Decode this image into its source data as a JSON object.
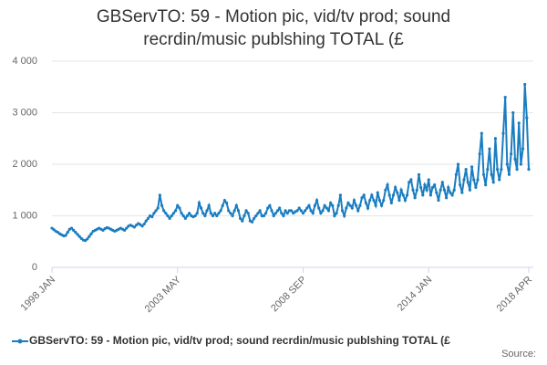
{
  "chart_data": {
    "type": "line",
    "title": "GBServTO: 59 - Motion pic, vid/tv prod; sound recrdin/music publshing TOTAL (£",
    "source": "Source:",
    "categories": [
      "1998 JAN",
      null,
      null,
      null,
      null,
      null,
      null,
      null,
      null,
      null,
      null,
      null,
      null,
      null,
      null,
      null,
      null,
      null,
      null,
      null,
      null,
      null,
      null,
      null,
      null,
      null,
      null,
      null,
      null,
      null,
      null,
      null,
      null,
      null,
      null,
      null,
      null,
      null,
      null,
      null,
      null,
      null,
      null,
      null,
      null,
      null,
      null,
      null,
      null,
      null,
      null,
      null,
      null,
      null,
      null,
      null,
      null,
      null,
      null,
      null,
      null,
      null,
      null,
      null,
      "2003 MAY",
      null,
      null,
      null,
      null,
      null,
      null,
      null,
      null,
      null,
      null,
      null,
      null,
      null,
      null,
      null,
      null,
      null,
      null,
      null,
      null,
      null,
      null,
      null,
      null,
      null,
      null,
      null,
      null,
      null,
      null,
      null,
      null,
      null,
      null,
      null,
      null,
      null,
      null,
      null,
      null,
      null,
      null,
      null,
      null,
      null,
      null,
      null,
      null,
      null,
      null,
      null,
      null,
      null,
      null,
      null,
      null,
      null,
      null,
      null,
      null,
      null,
      null,
      null,
      "2008 SEP",
      null,
      null,
      null,
      null,
      null,
      null,
      null,
      null,
      null,
      null,
      null,
      null,
      null,
      null,
      null,
      null,
      null,
      null,
      null,
      null,
      null,
      null,
      null,
      null,
      null,
      null,
      null,
      null,
      null,
      null,
      null,
      null,
      null,
      null,
      null,
      null,
      null,
      null,
      null,
      null,
      null,
      null,
      null,
      null,
      null,
      null,
      null,
      null,
      null,
      null,
      null,
      null,
      null,
      null,
      null,
      null,
      null,
      null,
      null,
      null,
      null,
      null,
      null,
      "2014 JAN",
      null,
      null,
      null,
      null,
      null,
      null,
      null,
      null,
      null,
      null,
      null,
      null,
      null,
      null,
      null,
      null,
      null,
      null,
      null,
      null,
      null,
      null,
      null,
      null,
      null,
      null,
      null,
      null,
      null,
      null,
      null,
      null,
      null,
      null,
      null,
      null,
      null,
      null,
      null,
      null,
      null,
      null,
      null,
      null,
      null,
      null,
      null,
      null,
      null,
      null,
      "2018 APR"
    ],
    "series": [
      {
        "name": "GBServTO: 59 - Motion pic, vid/tv prod; sound recrdin/music publshing TOTAL (£",
        "color": "#1a7dc0",
        "values": [
          760,
          730,
          700,
          680,
          650,
          630,
          610,
          620,
          680,
          740,
          760,
          720,
          680,
          640,
          600,
          560,
          530,
          520,
          550,
          600,
          650,
          700,
          720,
          740,
          760,
          740,
          720,
          750,
          770,
          760,
          740,
          720,
          700,
          720,
          740,
          760,
          740,
          720,
          760,
          800,
          820,
          800,
          780,
          820,
          850,
          830,
          800,
          840,
          900,
          950,
          1000,
          980,
          1050,
          1100,
          1150,
          1400,
          1200,
          1100,
          1050,
          1000,
          950,
          1000,
          1050,
          1100,
          1200,
          1150,
          1050,
          1000,
          950,
          1000,
          1050,
          1000,
          980,
          1000,
          1050,
          1250,
          1150,
          1050,
          1000,
          1100,
          1200,
          1050,
          1000,
          1050,
          1000,
          1050,
          1100,
          1200,
          1300,
          1250,
          1100,
          1050,
          1000,
          1100,
          1200,
          1100,
          950,
          900,
          1000,
          1100,
          1050,
          900,
          880,
          950,
          1000,
          1050,
          1100,
          1000,
          1000,
          1050,
          1150,
          1200,
          1100,
          1000,
          1050,
          1100,
          1150,
          1050,
          1000,
          1100,
          1050,
          1100,
          1100,
          1050,
          1080,
          1100,
          1150,
          1100,
          1050,
          1100,
          1150,
          1200,
          1100,
          1050,
          1200,
          1300,
          1150,
          1050,
          1100,
          1200,
          1150,
          1100,
          1250,
          1200,
          1000,
          1050,
          1200,
          1400,
          1100,
          1000,
          1150,
          1250,
          1200,
          1150,
          1300,
          1200,
          1100,
          1200,
          1350,
          1400,
          1250,
          1150,
          1300,
          1400,
          1300,
          1200,
          1450,
          1300,
          1200,
          1300,
          1500,
          1600,
          1400,
          1250,
          1400,
          1550,
          1450,
          1300,
          1500,
          1400,
          1300,
          1400,
          1650,
          1700,
          1500,
          1350,
          1500,
          1800,
          1550,
          1400,
          1600,
          1500,
          1700,
          1400,
          1550,
          1600,
          1450,
          1300,
          1500,
          1650,
          1500,
          1350,
          1550,
          1450,
          1400,
          1500,
          1800,
          2000,
          1600,
          1450,
          1700,
          1900,
          1650,
          1500,
          1950,
          1700,
          1550,
          1700,
          2200,
          2600,
          1800,
          1600,
          1900,
          2300,
          1800,
          1650,
          2500,
          1900,
          1700,
          1900,
          2600,
          3300,
          2000,
          1800,
          2200,
          3000,
          2100,
          1900,
          2800,
          2000,
          2300,
          3550,
          2900,
          1900
        ]
      }
    ],
    "ylim": [
      0,
      4000
    ],
    "yticks": [
      0,
      {
        "value": 1000,
        "label": "1 000"
      },
      {
        "value": 2000,
        "label": "2 000"
      },
      {
        "value": 3000,
        "label": "3 000"
      },
      {
        "value": 4000,
        "label": "4 000"
      }
    ],
    "grid": true
  }
}
